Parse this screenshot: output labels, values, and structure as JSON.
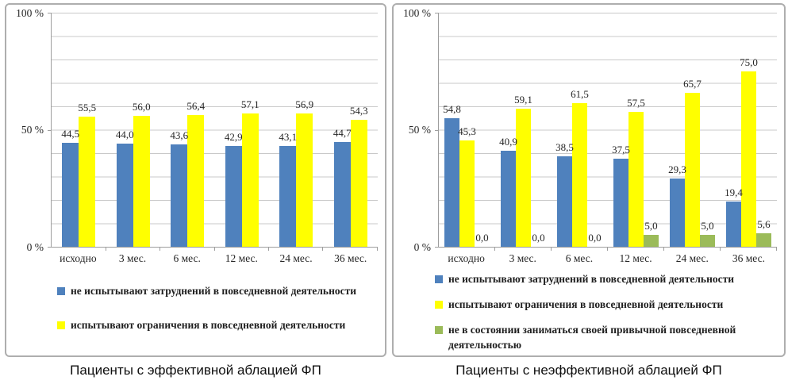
{
  "chart_data": [
    {
      "type": "bar",
      "title": "Пациенты с эффективной аблацией ФП",
      "categories": [
        "исходно",
        "3 мес.",
        "6 мес.",
        "12 мес.",
        "24 мес.",
        "36 мес."
      ],
      "ytick_labels": [
        "100 %",
        "50 %",
        "0 %"
      ],
      "ylim": [
        0,
        100
      ],
      "grid": true,
      "gridline_step_percent": 10,
      "legend_position": "bottom",
      "series": [
        {
          "name": "не испытывают затруднений в повседневной деятельности",
          "color": "#4f81bd",
          "values": [
            44.5,
            44.0,
            43.6,
            42.9,
            43.1,
            44.7
          ],
          "labels": [
            "44,5",
            "44,0",
            "43,6",
            "42,9",
            "43,1",
            "44,7"
          ]
        },
        {
          "name": "испытывают ограничения в повседневной деятельности",
          "color": "#ffff00",
          "values": [
            55.5,
            56.0,
            56.4,
            57.1,
            56.9,
            54.3
          ],
          "labels": [
            "55,5",
            "56,0",
            "56,4",
            "57,1",
            "56,9",
            "54,3"
          ]
        }
      ]
    },
    {
      "type": "bar",
      "title": "Пациенты с неэффективной аблацией ФП",
      "categories": [
        "исходно",
        "3 мес.",
        "6 мес.",
        "12 мес.",
        "24 мес.",
        "36 мес."
      ],
      "ytick_labels": [
        "100 %",
        "50 %",
        "0 %"
      ],
      "ylim": [
        0,
        100
      ],
      "grid": true,
      "gridline_step_percent": 10,
      "legend_position": "bottom",
      "series": [
        {
          "name": "не испытывают затруднений в повседневной деятельности",
          "color": "#4f81bd",
          "values": [
            54.8,
            40.9,
            38.5,
            37.5,
            29.3,
            19.4
          ],
          "labels": [
            "54,8",
            "40,9",
            "38,5",
            "37,5",
            "29,3",
            "19,4"
          ]
        },
        {
          "name": "испытывают ограничения в повседневной деятельности",
          "color": "#ffff00",
          "values": [
            45.3,
            59.1,
            61.5,
            57.5,
            65.7,
            75.0
          ],
          "labels": [
            "45,3",
            "59,1",
            "61,5",
            "57,5",
            "65,7",
            "75,0"
          ]
        },
        {
          "name": "не в состоянии заниматься своей привычной повседневной деятельностью",
          "color": "#9bbb59",
          "values": [
            0.0,
            0.0,
            0.0,
            5.0,
            5.0,
            5.6
          ],
          "labels": [
            "0,0",
            "0,0",
            "0,0",
            "5,0",
            "5,0",
            "5,6"
          ]
        }
      ]
    }
  ]
}
